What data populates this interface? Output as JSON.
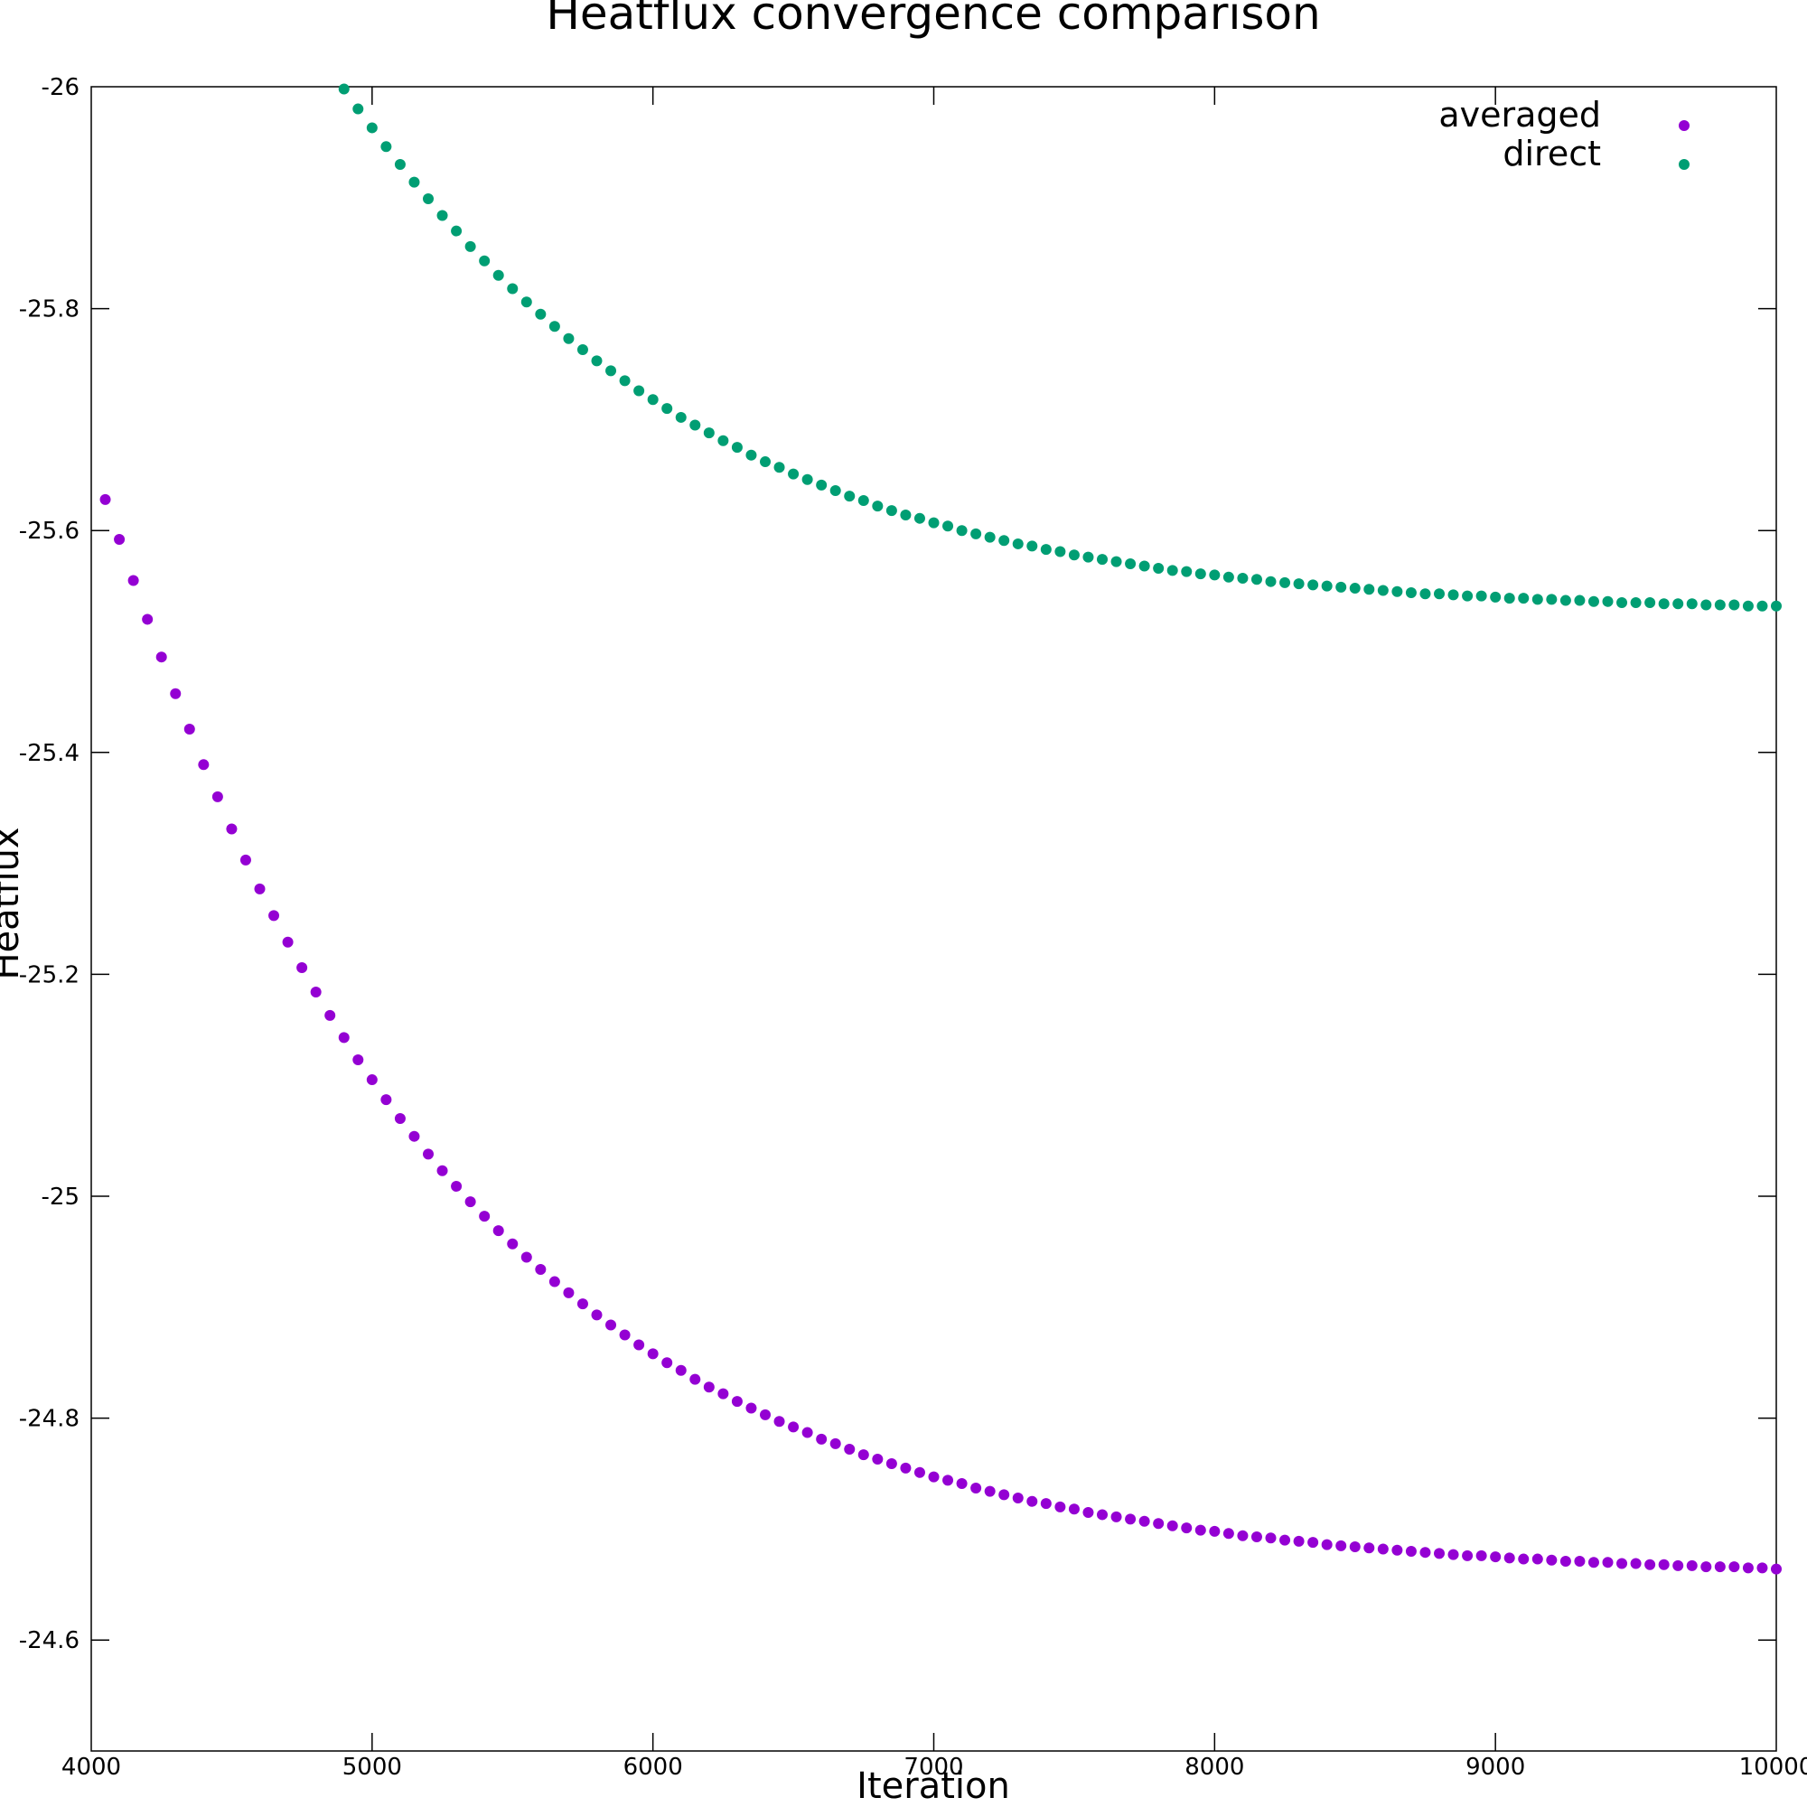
{
  "chart_data": {
    "type": "scatter",
    "title": "Heatflux convergence comparison",
    "xlabel": "Iteration",
    "ylabel": "Heatflux",
    "xlim": [
      4000,
      10000
    ],
    "ylim": [
      -26.0,
      -24.5
    ],
    "y_inverted": true,
    "grid": false,
    "legend_position": "top-right",
    "x_ticks": [
      4000,
      5000,
      6000,
      7000,
      8000,
      9000,
      10000
    ],
    "x_tick_labels": [
      "4000",
      "5000",
      "6000",
      "7000",
      "8000",
      "9000",
      "10000"
    ],
    "y_ticks": [
      -26,
      -25.8,
      -25.6,
      -25.4,
      -25.2,
      -25,
      -24.8,
      -24.6
    ],
    "y_tick_labels": [
      "-26",
      "-25.8",
      "-25.6",
      "-25.4",
      "-25.2",
      "-25",
      "-24.8",
      "-24.6"
    ],
    "series": [
      {
        "name": "averaged",
        "color": "#9400d3",
        "x": [
          4050,
          4100,
          4150,
          4200,
          4250,
          4300,
          4350,
          4400,
          4450,
          4500,
          4550,
          4600,
          4650,
          4700,
          4750,
          4800,
          4850,
          4900,
          4950,
          5000,
          5050,
          5100,
          5150,
          5200,
          5250,
          5300,
          5350,
          5400,
          5450,
          5500,
          5550,
          5600,
          5650,
          5700,
          5750,
          5800,
          5850,
          5900,
          5950,
          6000,
          6050,
          6100,
          6150,
          6200,
          6250,
          6300,
          6350,
          6400,
          6450,
          6500,
          6550,
          6600,
          6650,
          6700,
          6750,
          6800,
          6850,
          6900,
          6950,
          7000,
          7050,
          7100,
          7150,
          7200,
          7250,
          7300,
          7350,
          7400,
          7450,
          7500,
          7550,
          7600,
          7650,
          7700,
          7750,
          7800,
          7850,
          7900,
          7950,
          8000,
          8050,
          8100,
          8150,
          8200,
          8250,
          8300,
          8350,
          8400,
          8450,
          8500,
          8550,
          8600,
          8650,
          8700,
          8750,
          8800,
          8850,
          8900,
          8950,
          9000,
          9050,
          9100,
          9150,
          9200,
          9250,
          9300,
          9350,
          9400,
          9450,
          9500,
          9550,
          9600,
          9650,
          9700,
          9750,
          9800,
          9850,
          9900,
          9950,
          10000
        ],
        "y": [
          -25.628,
          -25.592,
          -25.555,
          -25.52,
          -25.486,
          -25.453,
          -25.421,
          -25.389,
          -25.36,
          -25.331,
          -25.303,
          -25.277,
          -25.253,
          -25.229,
          -25.206,
          -25.184,
          -25.163,
          -25.143,
          -25.123,
          -25.105,
          -25.087,
          -25.07,
          -25.054,
          -25.038,
          -25.023,
          -25.009,
          -24.995,
          -24.982,
          -24.969,
          -24.957,
          -24.945,
          -24.934,
          -24.923,
          -24.913,
          -24.903,
          -24.893,
          -24.884,
          -24.875,
          -24.866,
          -24.858,
          -24.85,
          -24.843,
          -24.835,
          -24.828,
          -24.822,
          -24.815,
          -24.809,
          -24.803,
          -24.797,
          -24.792,
          -24.787,
          -24.781,
          -24.777,
          -24.772,
          -24.767,
          -24.763,
          -24.759,
          -24.755,
          -24.751,
          -24.747,
          -24.744,
          -24.741,
          -24.737,
          -24.734,
          -24.731,
          -24.728,
          -24.725,
          -24.723,
          -24.72,
          -24.718,
          -24.715,
          -24.713,
          -24.711,
          -24.709,
          -24.707,
          -24.705,
          -24.703,
          -24.701,
          -24.699,
          -24.698,
          -24.696,
          -24.694,
          -24.693,
          -24.692,
          -24.69,
          -24.689,
          -24.688,
          -24.686,
          -24.685,
          -24.684,
          -24.683,
          -24.682,
          -24.681,
          -24.68,
          -24.679,
          -24.678,
          -24.677,
          -24.676,
          -24.676,
          -24.675,
          -24.674,
          -24.673,
          -24.673,
          -24.672,
          -24.671,
          -24.671,
          -24.67,
          -24.67,
          -24.669,
          -24.669,
          -24.668,
          -24.668,
          -24.667,
          -24.667,
          -24.666,
          -24.666,
          -24.666,
          -24.665,
          -24.665,
          -24.664
        ]
      },
      {
        "name": "direct",
        "color": "#009e73",
        "x": [
          4900,
          4950,
          5000,
          5050,
          5100,
          5150,
          5200,
          5250,
          5300,
          5350,
          5400,
          5450,
          5500,
          5550,
          5600,
          5650,
          5700,
          5750,
          5800,
          5850,
          5900,
          5950,
          6000,
          6050,
          6100,
          6150,
          6200,
          6250,
          6300,
          6350,
          6400,
          6450,
          6500,
          6550,
          6600,
          6650,
          6700,
          6750,
          6800,
          6850,
          6900,
          6950,
          7000,
          7050,
          7100,
          7150,
          7200,
          7250,
          7300,
          7350,
          7400,
          7450,
          7500,
          7550,
          7600,
          7650,
          7700,
          7750,
          7800,
          7850,
          7900,
          7950,
          8000,
          8050,
          8100,
          8150,
          8200,
          8250,
          8300,
          8350,
          8400,
          8450,
          8500,
          8550,
          8600,
          8650,
          8700,
          8750,
          8800,
          8850,
          8900,
          8950,
          9000,
          9050,
          9100,
          9150,
          9200,
          9250,
          9300,
          9350,
          9400,
          9450,
          9500,
          9550,
          9600,
          9650,
          9700,
          9750,
          9800,
          9850,
          9900,
          9950,
          10000
        ],
        "y": [
          -25.998,
          -25.98,
          -25.963,
          -25.946,
          -25.93,
          -25.914,
          -25.899,
          -25.884,
          -25.87,
          -25.856,
          -25.843,
          -25.83,
          -25.818,
          -25.806,
          -25.795,
          -25.784,
          -25.773,
          -25.763,
          -25.753,
          -25.744,
          -25.735,
          -25.726,
          -25.718,
          -25.71,
          -25.702,
          -25.695,
          -25.688,
          -25.681,
          -25.675,
          -25.668,
          -25.662,
          -25.657,
          -25.651,
          -25.646,
          -25.641,
          -25.636,
          -25.631,
          -25.627,
          -25.622,
          -25.618,
          -25.614,
          -25.611,
          -25.607,
          -25.604,
          -25.6,
          -25.597,
          -25.594,
          -25.591,
          -25.588,
          -25.586,
          -25.583,
          -25.581,
          -25.578,
          -25.576,
          -25.574,
          -25.572,
          -25.57,
          -25.568,
          -25.566,
          -25.564,
          -25.563,
          -25.561,
          -25.56,
          -25.558,
          -25.557,
          -25.556,
          -25.554,
          -25.553,
          -25.552,
          -25.551,
          -25.55,
          -25.549,
          -25.548,
          -25.547,
          -25.546,
          -25.545,
          -25.544,
          -25.543,
          -25.543,
          -25.542,
          -25.541,
          -25.541,
          -25.54,
          -25.539,
          -25.539,
          -25.538,
          -25.538,
          -25.537,
          -25.537,
          -25.536,
          -25.536,
          -25.535,
          -25.535,
          -25.535,
          -25.534,
          -25.534,
          -25.534,
          -25.533,
          -25.533,
          -25.533,
          -25.532,
          -25.532,
          -25.532
        ]
      }
    ]
  }
}
